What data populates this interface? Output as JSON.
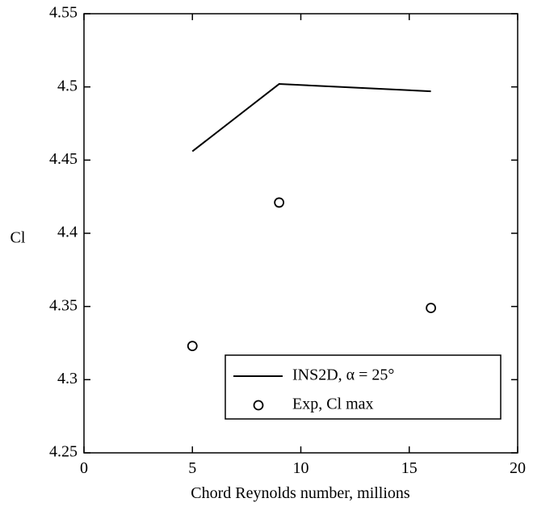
{
  "chart_data": {
    "type": "line",
    "title": "",
    "xlabel": "Chord Reynolds number, millions",
    "ylabel": "Cl",
    "xlim": [
      0,
      20
    ],
    "ylim": [
      4.25,
      4.55
    ],
    "x_ticks": [
      0,
      5,
      10,
      15,
      20
    ],
    "x_tick_labels": [
      "0",
      "5",
      "10",
      "15",
      "20"
    ],
    "y_ticks": [
      4.25,
      4.3,
      4.35,
      4.4,
      4.45,
      4.5,
      4.55
    ],
    "y_tick_labels": [
      "4.25",
      "4.3",
      "4.35",
      "4.4",
      "4.45",
      "4.5",
      "4.55"
    ],
    "grid": false,
    "legend_position": "bottom-right",
    "series": [
      {
        "name": "INS2D, α = 25°",
        "kind": "line",
        "x": [
          5,
          9,
          16
        ],
        "y": [
          4.456,
          4.502,
          4.497
        ]
      },
      {
        "name": "Exp, Cl max",
        "kind": "scatter",
        "marker": "open-circle",
        "x": [
          5,
          9,
          16
        ],
        "y": [
          4.323,
          4.421,
          4.349
        ]
      }
    ]
  }
}
